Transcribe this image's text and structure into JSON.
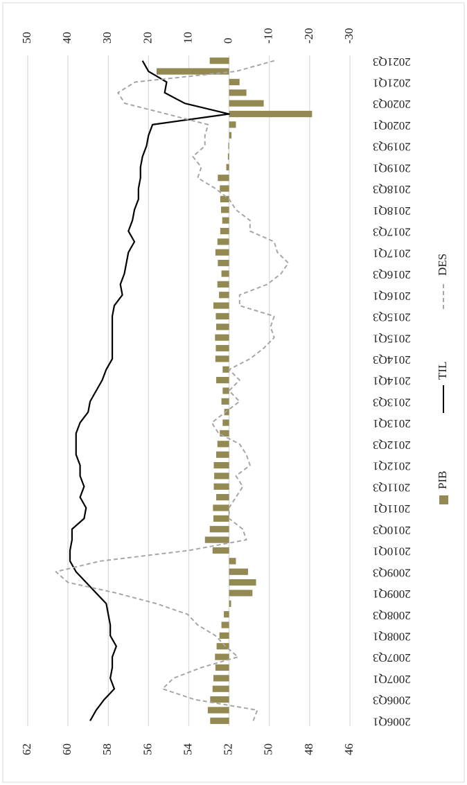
{
  "chart_data": {
    "type": "bar_line",
    "categories": [
      "2006Q1",
      null,
      "2006Q3",
      null,
      "2007Q1",
      null,
      "2007Q3",
      null,
      "2008Q1",
      null,
      "2008Q3",
      null,
      "2009Q1",
      null,
      "2009Q3",
      null,
      "2010Q1",
      null,
      "2010Q3",
      null,
      "2011Q1",
      null,
      "2011Q3",
      null,
      "2012Q1",
      null,
      "2012Q3",
      null,
      "2013Q1",
      null,
      "2013Q3",
      null,
      "2014Q1",
      null,
      "2014Q3",
      null,
      "2015Q1",
      null,
      "2015Q3",
      null,
      "2016Q1",
      null,
      "2016Q3",
      null,
      "2017Q1",
      null,
      "2017Q3",
      null,
      "2018Q1",
      null,
      "2018Q3",
      null,
      "2019Q1",
      null,
      "2019Q3",
      null,
      "2020Q1",
      null,
      "2020Q3",
      null,
      "2021Q1",
      null,
      "2021Q3"
    ],
    "series": [
      {
        "name": "PIB",
        "type": "bar",
        "axis": "y2",
        "color": "#938953",
        "values": [
          4.7,
          5.3,
          4.7,
          4.1,
          3.9,
          3.4,
          3.5,
          3.1,
          2.4,
          1.9,
          1.3,
          -0.5,
          -5.8,
          -6.7,
          -4.7,
          -1.7,
          4.1,
          6.0,
          4.8,
          3.9,
          4.0,
          3.2,
          3.8,
          3.7,
          3.8,
          3.2,
          2.9,
          2.3,
          1.6,
          1.2,
          1.9,
          1.6,
          3.2,
          1.6,
          3.4,
          3.3,
          3.5,
          3.2,
          3.3,
          3.9,
          2.5,
          2.9,
          1.9,
          2.8,
          3.4,
          2.9,
          2.2,
          1.7,
          2.0,
          2.2,
          2.3,
          2.8,
          0.7,
          0.3,
          0.2,
          -0.6,
          -1.7,
          -20.6,
          -8.6,
          -4.3,
          -2.6,
          18.0,
          4.8
        ]
      },
      {
        "name": "TIL",
        "type": "line",
        "axis": "y",
        "color": "#000000",
        "values": [
          58.9,
          58.6,
          58.2,
          57.7,
          57.9,
          57.8,
          57.8,
          57.6,
          57.9,
          57.9,
          58.0,
          58.1,
          58.6,
          59.1,
          59.6,
          59.9,
          59.9,
          59.8,
          59.8,
          59.2,
          59.1,
          59.4,
          59.2,
          59.4,
          59.4,
          59.6,
          59.6,
          59.6,
          59.4,
          59.0,
          58.9,
          58.6,
          58.3,
          58.1,
          57.8,
          57.8,
          57.8,
          57.8,
          57.8,
          57.7,
          57.3,
          57.4,
          57.2,
          57.1,
          57.0,
          56.7,
          57.0,
          56.8,
          56.7,
          56.5,
          56.5,
          56.4,
          56.4,
          56.3,
          56.1,
          56.0,
          55.8,
          52.0,
          54.2,
          55.2,
          55.1,
          56.0,
          56.3
        ]
      },
      {
        "name": "DES",
        "type": "dashed",
        "axis": "y2",
        "color": "#a6a6a6",
        "values": [
          -6,
          -7,
          8.6,
          16.5,
          13.8,
          6.9,
          -2.2,
          0.9,
          3.4,
          7.8,
          10.3,
          18,
          28,
          40,
          43,
          32,
          10,
          -4.3,
          -3.4,
          0,
          0,
          -1.7,
          -3.4,
          -1.7,
          -5.2,
          -4.3,
          -2.6,
          2.6,
          4.3,
          0.9,
          -2.6,
          0,
          -2.6,
          0,
          -5.2,
          -8.6,
          -11.2,
          -10.3,
          -11.2,
          -2.6,
          -2.6,
          -9.5,
          -12.9,
          -14.7,
          -12,
          -11.2,
          -5.2,
          -5.2,
          -1.7,
          0,
          3.4,
          7.8,
          6.9,
          9,
          6,
          6,
          5.2,
          15.5,
          25.9,
          27.6,
          23.3,
          -1.7,
          -11.2
        ]
      }
    ],
    "ylim": [
      46,
      62
    ],
    "yticks": [
      46,
      48,
      50,
      52,
      54,
      56,
      58,
      60,
      62
    ],
    "y2lim": [
      -30,
      50
    ],
    "y2ticks": [
      -30,
      -20,
      -10,
      0,
      10,
      20,
      30,
      40,
      50
    ],
    "grid": true,
    "legend": "bottom"
  }
}
